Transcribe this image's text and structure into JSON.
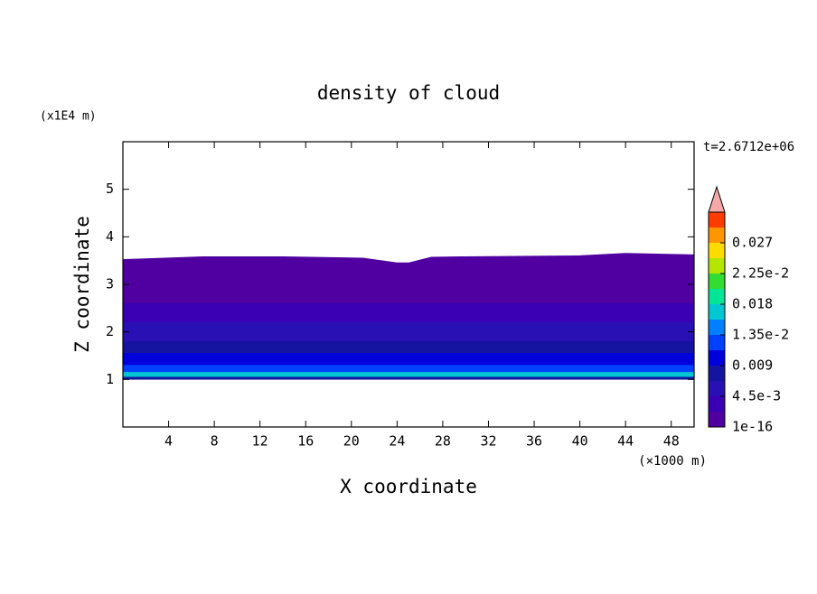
{
  "chart_data": {
    "type": "contour",
    "title": "density of cloud",
    "x_label": "X coordinate",
    "x_unit": "(×1000 m)",
    "y_label": "Z coordinate",
    "y_unit": "(x1E4 m)",
    "annotation": "t=2.6712e+06",
    "xlim": [
      0,
      50
    ],
    "xticks": [
      4,
      8,
      12,
      16,
      20,
      24,
      28,
      32,
      36,
      40,
      44,
      48
    ],
    "ylim": [
      0,
      6
    ],
    "yticks": [
      1,
      2,
      3,
      4,
      5
    ],
    "field": [
      {
        "z0": 2.6,
        "value": 0.001
      },
      {
        "z0": 2.2,
        "z1": 2.6,
        "value": 0.003
      },
      {
        "z0": 1.8,
        "z1": 2.2,
        "value": 0.005
      },
      {
        "z0": 1.55,
        "z1": 1.8,
        "value": 0.008
      },
      {
        "z0": 1.3,
        "z1": 1.55,
        "value": 0.01
      },
      {
        "z0": 1.15,
        "z1": 1.3,
        "value": 0.012
      },
      {
        "z0": 1.05,
        "z1": 1.15,
        "value": 0.016
      },
      {
        "z0": 1.0,
        "z1": 1.05,
        "value": 0.007
      }
    ],
    "top_boundary": {
      "x": [
        0,
        7,
        14,
        21,
        24,
        25,
        27,
        30,
        40,
        44,
        50
      ],
      "z": [
        3.52,
        3.58,
        3.58,
        3.55,
        3.45,
        3.45,
        3.57,
        3.58,
        3.6,
        3.65,
        3.62
      ]
    },
    "colorbar": {
      "clim": [
        0,
        0.0315
      ],
      "colors": [
        "#5000a0",
        "#3c00b4",
        "#2810b4",
        "#1414a0",
        "#0000dc",
        "#0040ff",
        "#0080ff",
        "#00c8d2",
        "#00e696",
        "#32dc32",
        "#b4e600",
        "#ffdc00",
        "#ff9600",
        "#ff3c00"
      ],
      "over_color": "#f4a8a8",
      "ticks": [
        {
          "value": 1e-16,
          "label": "1e-16"
        },
        {
          "value": 0.0045,
          "label": "4.5e-3"
        },
        0.009,
        {
          "value": 0.0135,
          "label": "1.35e-2"
        },
        0.018,
        {
          "value": 0.0225,
          "label": "2.25e-2"
        },
        0.027
      ]
    }
  }
}
